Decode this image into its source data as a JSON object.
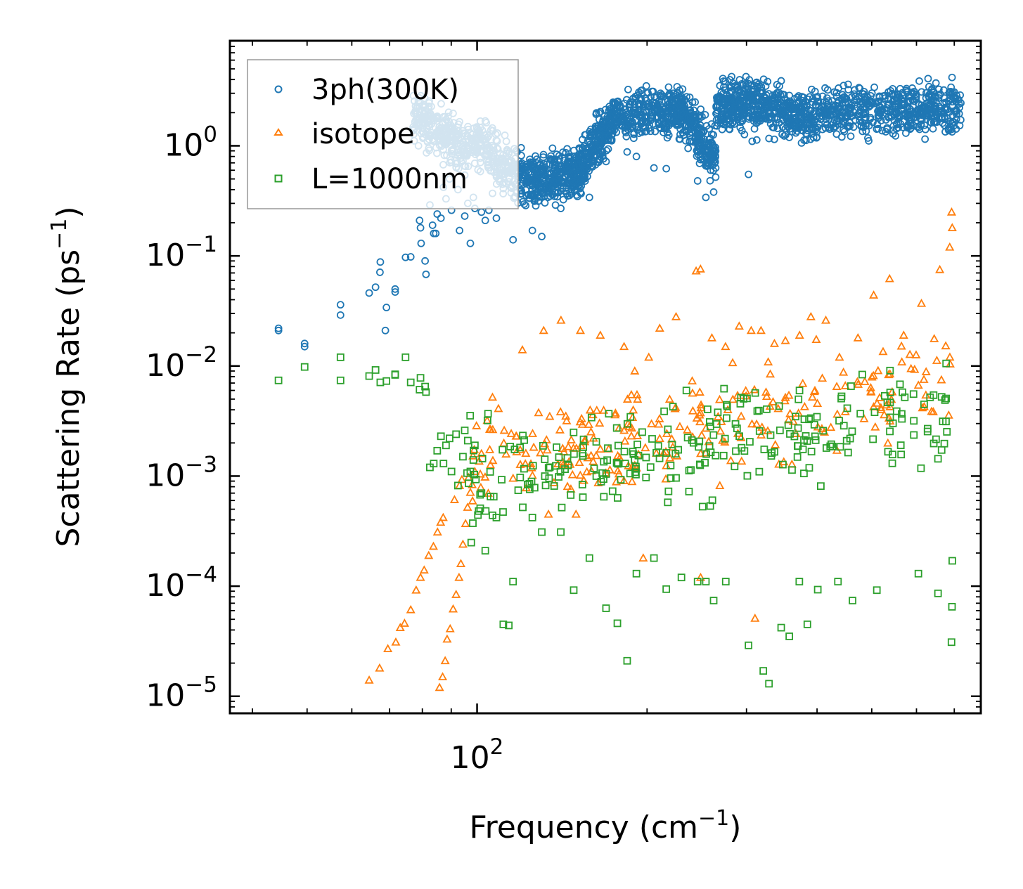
{
  "chart_data": {
    "type": "scatter",
    "xscale": "log",
    "yscale": "log",
    "xlabel": "Frequency (cm",
    "xlabel_exp": "−1",
    "xlabel_end": ")",
    "ylabel": "Scattering Rate (ps",
    "ylabel_exp": "−1",
    "ylabel_end": ")",
    "xlim": [
      36.5,
      780
    ],
    "ylim": [
      7e-06,
      9
    ],
    "legend_position": "top-left",
    "x_tick_labels": [
      {
        "base": "10",
        "exp": "2",
        "value": 100
      }
    ],
    "y_tick_labels": [
      {
        "base": "10",
        "exp": "0",
        "value": 1
      },
      {
        "base": "10",
        "exp": "−1",
        "value": 0.1
      },
      {
        "base": "10",
        "exp": "−2",
        "value": 0.01
      },
      {
        "base": "10",
        "exp": "−3",
        "value": 0.001
      },
      {
        "base": "10",
        "exp": "−4",
        "value": 0.0001
      },
      {
        "base": "10",
        "exp": "−5",
        "value": 1e-05
      }
    ],
    "series": [
      {
        "name": "3ph(300K)",
        "marker": "circle",
        "color": "#1f77b4",
        "points": [
          [
            44.5,
            0.021
          ],
          [
            44.5,
            0.022
          ],
          [
            49.5,
            0.015
          ],
          [
            49.5,
            0.016
          ],
          [
            57.3,
            0.029
          ],
          [
            57.3,
            0.036
          ],
          [
            64.4,
            0.046
          ],
          [
            66.1,
            0.052
          ],
          [
            67.3,
            0.071
          ],
          [
            67.4,
            0.088
          ],
          [
            68.8,
            0.021
          ],
          [
            69.1,
            0.034
          ],
          [
            71.6,
            0.047
          ],
          [
            71.6,
            0.05
          ],
          [
            74.7,
            0.097
          ],
          [
            76.3,
            0.098
          ],
          [
            79.1,
            0.21
          ],
          [
            79.4,
            0.18
          ],
          [
            79.6,
            0.13
          ],
          [
            80.9,
            0.09
          ],
          [
            81.2,
            0.068
          ],
          [
            82.5,
            0.29
          ],
          [
            83.4,
            0.19
          ],
          [
            83.8,
            0.16
          ],
          [
            84.5,
            0.16
          ],
          [
            85.0,
            0.24
          ],
          [
            86.3,
            0.22
          ],
          [
            87.2,
            0.42
          ],
          [
            88.1,
            0.33
          ],
          [
            89.4,
            0.5
          ],
          [
            90.1,
            0.26
          ],
          [
            91.8,
            0.64
          ],
          [
            92.5,
            0.4
          ],
          [
            93.1,
            0.17
          ],
          [
            94.4,
            0.73
          ],
          [
            95.1,
            0.23
          ],
          [
            96.3,
            0.3
          ],
          [
            97.3,
            0.13
          ],
          [
            98.5,
            0.34
          ],
          [
            99.1,
            0.27
          ],
          [
            101.8,
            0.25
          ],
          [
            103.4,
            0.21
          ],
          [
            104.9,
            0.26
          ],
          [
            106.5,
            0.37
          ],
          [
            108.2,
            0.22
          ],
          [
            111.3,
            0.41
          ],
          [
            115.8,
            0.14
          ],
          [
            120.5,
            0.31
          ],
          [
            125.3,
            0.17
          ],
          [
            130.2,
            0.15
          ],
          [
            140.7,
            0.27
          ],
          [
            148.3,
            0.52
          ],
          [
            158.1,
            0.34
          ],
          [
            169.2,
            0.72
          ],
          [
            184.4,
            0.88
          ],
          [
            191.5,
            0.8
          ],
          [
            205.7,
            0.63
          ],
          [
            216.3,
            0.62
          ],
          [
            245.8,
            0.48
          ],
          [
            254.2,
            0.34
          ],
          [
            262.4,
            0.38
          ],
          [
            302.5,
            0.55
          ],
          [
            307.1,
            1.1
          ],
          [
            312.8,
            1.13
          ]
        ],
        "bands": [
          {
            "x0": 77,
            "x1": 97,
            "y0": 1.9,
            "y1": 0.9
          },
          {
            "x0": 97,
            "x1": 125,
            "y0": 1.2,
            "y1": 0.45
          },
          {
            "x0": 125,
            "x1": 150,
            "y0": 0.45,
            "y1": 0.55
          },
          {
            "x0": 150,
            "x1": 175,
            "y0": 0.55,
            "y1": 1.8
          },
          {
            "x0": 175,
            "x1": 225,
            "y0": 1.8,
            "y1": 2.2
          },
          {
            "x0": 225,
            "x1": 265,
            "y0": 2.2,
            "y1": 0.8
          },
          {
            "x0": 265,
            "x1": 320,
            "y0": 2.4,
            "y1": 2.5
          },
          {
            "x0": 320,
            "x1": 400,
            "y0": 2.2,
            "y1": 1.7
          },
          {
            "x0": 400,
            "x1": 550,
            "y0": 2.0,
            "y1": 2.2
          },
          {
            "x0": 550,
            "x1": 720,
            "y0": 2.0,
            "y1": 2.3
          }
        ]
      },
      {
        "name": "isotope",
        "marker": "triangle",
        "color": "#ff7f0e",
        "points": [
          [
            64.4,
            1.4e-05
          ],
          [
            67.2,
            1.8e-05
          ],
          [
            69.5,
            2.7e-05
          ],
          [
            71.8,
            3.1e-05
          ],
          [
            73.1,
            4.2e-05
          ],
          [
            74.4,
            4.6e-05
          ],
          [
            76.3,
            6.1e-05
          ],
          [
            78.0,
            9.2e-05
          ],
          [
            79.4,
            0.00012
          ],
          [
            80.6,
            0.00014
          ],
          [
            82.1,
            0.00019
          ],
          [
            83.7,
            0.00023
          ],
          [
            85.1,
            0.00031
          ],
          [
            86.2,
            0.00038
          ],
          [
            87.1,
            0.00042
          ],
          [
            85.8,
            1.2e-05
          ],
          [
            86.9,
            1.5e-05
          ],
          [
            87.8,
            2.1e-05
          ],
          [
            88.5,
            3.3e-05
          ],
          [
            89.6,
            4.1e-05
          ],
          [
            90.7,
            6.2e-05
          ],
          [
            91.8,
            8.4e-05
          ],
          [
            92.9,
            0.00012
          ],
          [
            93.6,
            0.00016
          ],
          [
            94.4,
            0.00024
          ],
          [
            95.4,
            0.00037
          ],
          [
            96.2,
            0.00052
          ],
          [
            97.3,
            0.00071
          ],
          [
            91.2,
            0.00061
          ],
          [
            93.1,
            0.00082
          ],
          [
            94.0,
            0.00093
          ],
          [
            99.1,
            0.0011
          ],
          [
            101.8,
            0.0016
          ],
          [
            104.2,
            0.0032
          ],
          [
            106.5,
            0.0052
          ],
          [
            109.1,
            0.0041
          ],
          [
            111.7,
            0.0026
          ],
          [
            120.3,
            0.014
          ],
          [
            131.2,
            0.021
          ],
          [
            140.8,
            0.026
          ],
          [
            152.4,
            0.021
          ],
          [
            165.3,
            0.019
          ],
          [
            182.1,
            0.015
          ],
          [
            190.2,
            0.009
          ],
          [
            201.4,
            0.012
          ],
          [
            210.6,
            0.022
          ],
          [
            225.1,
            0.028
          ],
          [
            244.3,
            0.073
          ],
          [
            248.7,
            0.076
          ],
          [
            260.5,
            0.018
          ],
          [
            275.4,
            0.015
          ],
          [
            291.2,
            0.023
          ],
          [
            305.8,
            0.021
          ],
          [
            318.3,
            0.021
          ],
          [
            336.2,
            0.016
          ],
          [
            351.6,
            0.017
          ],
          [
            372.5,
            0.019
          ],
          [
            390.1,
            0.028
          ],
          [
            414.6,
            0.026
          ],
          [
            438.3,
            0.012
          ],
          [
            472.6,
            0.018
          ],
          [
            503.9,
            0.044
          ],
          [
            537.7,
            0.062
          ],
          [
            569.5,
            0.019
          ],
          [
            612.3,
            0.037
          ],
          [
            659.8,
            0.075
          ],
          [
            687.1,
            0.12
          ],
          [
            692.4,
            0.25
          ],
          [
            694.2,
            0.18
          ],
          [
            248.8,
            0.00012
          ],
          [
            310.6,
            5.1e-05
          ],
          [
            196.9,
            0.00018
          ],
          [
            149.7,
            0.00045
          ],
          [
            133.8,
            0.00045
          ]
        ],
        "bands": [
          {
            "x0": 96,
            "x1": 690,
            "y0": 0.0012,
            "y1": 0.0075
          }
        ]
      },
      {
        "name": "L=1000nm",
        "marker": "square",
        "color": "#2ca02c",
        "points": [
          [
            44.5,
            0.0074
          ],
          [
            49.5,
            0.0098
          ],
          [
            57.3,
            0.0074
          ],
          [
            57.3,
            0.012
          ],
          [
            64.4,
            0.0081
          ],
          [
            66.1,
            0.0092
          ],
          [
            67.4,
            0.0071
          ],
          [
            69.1,
            0.0073
          ],
          [
            71.6,
            0.0084
          ],
          [
            71.6,
            0.0083
          ],
          [
            74.7,
            0.012
          ],
          [
            76.3,
            0.0071
          ],
          [
            79.1,
            0.0061
          ],
          [
            79.4,
            0.0078
          ],
          [
            80.9,
            0.0065
          ],
          [
            81.2,
            0.0058
          ],
          [
            82.5,
            0.0012
          ],
          [
            83.8,
            0.0013
          ],
          [
            85.0,
            0.0017
          ],
          [
            86.3,
            0.0023
          ],
          [
            87.2,
            0.0013
          ],
          [
            88.1,
            0.0019
          ],
          [
            89.4,
            0.0022
          ],
          [
            90.1,
            0.0011
          ],
          [
            91.8,
            0.0024
          ],
          [
            92.5,
            0.00082
          ],
          [
            94.4,
            0.0015
          ],
          [
            95.1,
            0.0026
          ],
          [
            96.3,
            0.0021
          ],
          [
            97.3,
            0.0011
          ],
          [
            98.5,
            0.0014
          ],
          [
            99.1,
            0.0019
          ],
          [
            101.8,
            0.0007
          ],
          [
            103.4,
            0.00021
          ],
          [
            106.5,
            0.00044
          ],
          [
            108.2,
            0.00042
          ],
          [
            111.3,
            4.5e-05
          ],
          [
            113.8,
            4.4e-05
          ],
          [
            115.8,
            0.00011
          ],
          [
            120.5,
            0.00052
          ],
          [
            125.3,
            0.00042
          ],
          [
            130.2,
            0.00031
          ],
          [
            140.7,
            0.00031
          ],
          [
            148.3,
            9.2e-05
          ],
          [
            158.1,
            0.00018
          ],
          [
            169.2,
            6.3e-05
          ],
          [
            177.2,
            4.6e-05
          ],
          [
            184.4,
            2.1e-05
          ],
          [
            191.5,
            0.00013
          ],
          [
            205.7,
            0.00018
          ],
          [
            216.3,
            9.4e-05
          ],
          [
            230.1,
            0.00012
          ],
          [
            245.8,
            0.00011
          ],
          [
            254.2,
            0.00011
          ],
          [
            262.4,
            7.4e-05
          ],
          [
            275.7,
            0.00011
          ],
          [
            302.5,
            2.9e-05
          ],
          [
            321.3,
            1.7e-05
          ],
          [
            328.8,
            1.3e-05
          ],
          [
            345.6,
            4.2e-05
          ],
          [
            357.2,
            3.5e-05
          ],
          [
            372.1,
            0.00011
          ],
          [
            384.5,
            4.5e-05
          ],
          [
            401.2,
            9.3e-05
          ],
          [
            435.6,
            0.00011
          ],
          [
            462.3,
            7.4e-05
          ],
          [
            510.5,
            9.2e-05
          ],
          [
            604.7,
            0.00013
          ],
          [
            655.1,
            8.6e-05
          ],
          [
            692.1,
            3.1e-05
          ],
          [
            694.4,
            0.00017
          ],
          [
            693.5,
            6.5e-05
          ]
        ],
        "bands": [
          {
            "x0": 95,
            "x1": 695,
            "y0": 0.0009,
            "y1": 0.004
          }
        ]
      }
    ]
  }
}
